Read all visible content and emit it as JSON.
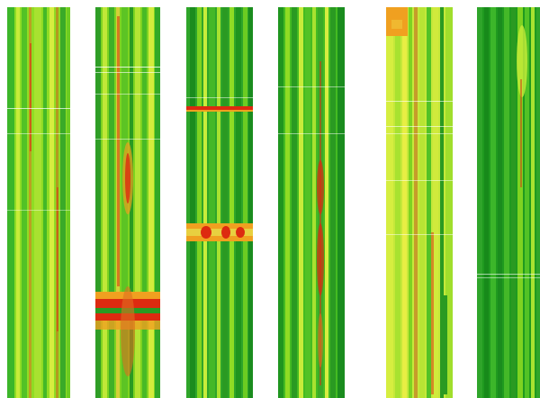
{
  "image": {
    "background": "#ffffff",
    "palette": {
      "green_dark": "#1a9a1a",
      "green": "#33bb22",
      "green_light": "#88dd22",
      "yellow_green": "#bbee33",
      "yellow": "#eeee44",
      "orange": "#f0a020",
      "red": "#dd2a10"
    },
    "strips": [
      {
        "id": "strip-1",
        "base": "#7ed321",
        "features": []
      },
      {
        "id": "strip-2",
        "base": "#6cc820",
        "features": [
          "horizontal-red-band-lower"
        ]
      },
      {
        "id": "strip-3",
        "base": "#2fa52a",
        "features": [
          "horizontal-red-line-upper",
          "horizontal-orange-band-middle"
        ]
      },
      {
        "id": "strip-4",
        "base": "#44bb22",
        "features": [
          "central-red-streak"
        ]
      },
      {
        "id": "strip-5",
        "base": "#c5e83a",
        "features": [
          "orange-patch-top"
        ]
      },
      {
        "id": "strip-6",
        "base": "#1f9a1f",
        "features": []
      }
    ]
  }
}
